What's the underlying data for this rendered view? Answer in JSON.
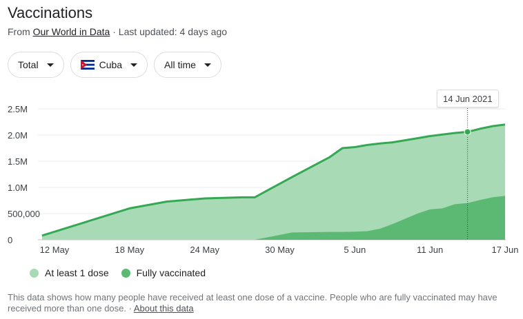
{
  "header": {
    "title": "Vaccinations",
    "source_prefix": "From ",
    "source_link": "Our World in Data",
    "updated": " · Last updated: 4 days ago"
  },
  "filters": {
    "metric": "Total",
    "country": "Cuba",
    "range": "All time"
  },
  "tooltip": {
    "date": "14 Jun 2021"
  },
  "colors": {
    "first_dose_fill": "#a8dab5",
    "fully_fill": "#5bb974",
    "line": "#34a853"
  },
  "chart_data": {
    "type": "area",
    "x": [
      "2021-05-11",
      "2021-05-18",
      "2021-05-21",
      "2021-05-24",
      "2021-05-27",
      "2021-05-28",
      "2021-05-31",
      "2021-06-03",
      "2021-06-04",
      "2021-06-05",
      "2021-06-06",
      "2021-06-07",
      "2021-06-08",
      "2021-06-09",
      "2021-06-10",
      "2021-06-11",
      "2021-06-12",
      "2021-06-13",
      "2021-06-14",
      "2021-06-15",
      "2021-06-16",
      "2021-06-17"
    ],
    "x_tick_labels": [
      "12 May",
      "18 May",
      "24 May",
      "30 May",
      "5 Jun",
      "11 Jun",
      "17 Jun"
    ],
    "x_tick_dates": [
      "2021-05-12",
      "2021-05-18",
      "2021-05-24",
      "2021-05-30",
      "2021-06-05",
      "2021-06-11",
      "2021-06-17"
    ],
    "y_ticks": [
      0,
      500000,
      1000000,
      1500000,
      2000000,
      2500000
    ],
    "y_tick_labels": [
      "0",
      "500,000",
      "1.0M",
      "1.5M",
      "2.0M",
      "2.5M"
    ],
    "ylim": [
      0,
      2500000
    ],
    "series": [
      {
        "name": "At least 1 dose",
        "values": [
          80000,
          600000,
          730000,
          790000,
          810000,
          810000,
          1200000,
          1580000,
          1750000,
          1770000,
          1810000,
          1840000,
          1860000,
          1900000,
          1940000,
          1980000,
          2010000,
          2040000,
          2060000,
          2120000,
          2170000,
          2200000
        ]
      },
      {
        "name": "Fully vaccinated",
        "values": [
          0,
          0,
          0,
          0,
          0,
          0,
          140000,
          150000,
          150000,
          155000,
          165000,
          210000,
          300000,
          400000,
          500000,
          580000,
          600000,
          680000,
          700000,
          760000,
          810000,
          840000
        ]
      }
    ],
    "highlight": {
      "x": "2021-06-14",
      "y": 2060000
    },
    "grid": true,
    "legend": "bottom-left"
  },
  "legend": {
    "first_dose": "At least 1 dose",
    "fully": "Fully vaccinated"
  },
  "footer": {
    "note": "This data shows how many people have received at least one dose of a vaccine. People who are fully vaccinated may have received more than one dose.",
    "separator": " · ",
    "about_link": "About this data"
  }
}
